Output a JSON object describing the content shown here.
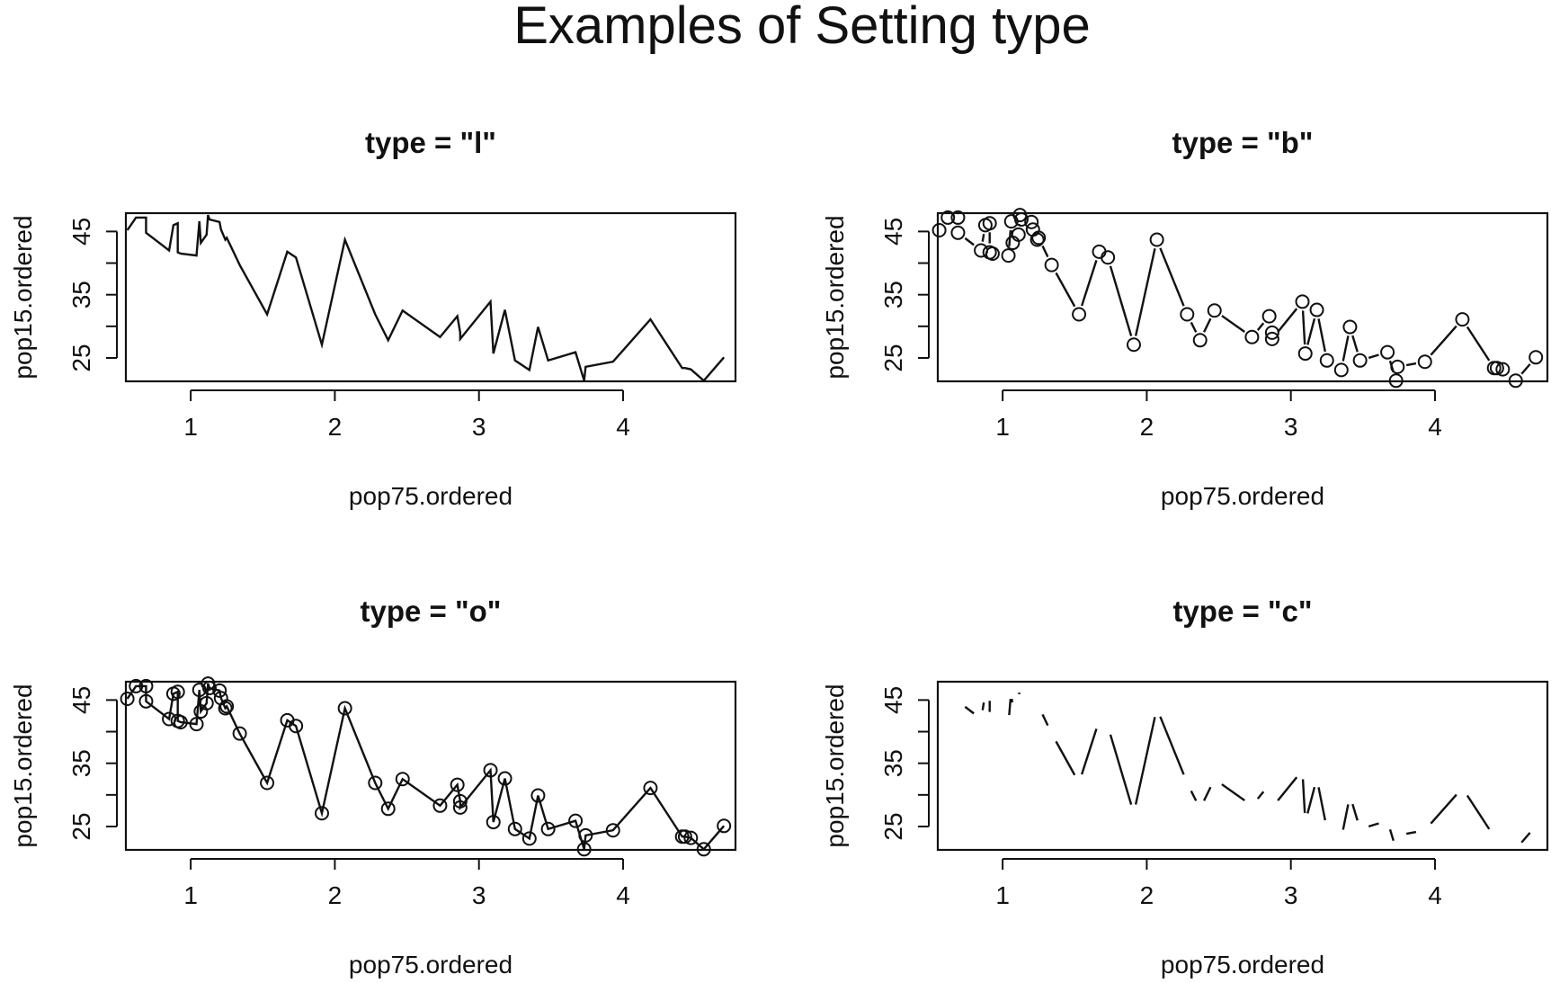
{
  "title": "Examples of Setting type",
  "chart_data": [
    {
      "type": "line",
      "plot_type": "l",
      "title": "type = \"l\"",
      "xlabel": "pop75.ordered",
      "ylabel": "pop15.ordered",
      "xlim": [
        0.55,
        4.78
      ],
      "ylim": [
        21.3,
        47.9
      ],
      "xticks": [
        1,
        2,
        3,
        4
      ],
      "yticks": [
        25,
        30,
        35,
        40,
        45
      ],
      "ytick_labels": [
        "25",
        "",
        "35",
        "",
        "45"
      ],
      "grid": false,
      "x": [
        0.56,
        0.62,
        0.69,
        0.69,
        0.85,
        0.88,
        0.91,
        0.91,
        0.93,
        1.04,
        1.06,
        1.07,
        1.11,
        1.12,
        1.13,
        1.2,
        1.21,
        1.24,
        1.25,
        1.34,
        1.53,
        1.67,
        1.73,
        1.91,
        2.07,
        2.28,
        2.37,
        2.47,
        2.73,
        2.85,
        2.87,
        2.87,
        3.08,
        3.1,
        3.18,
        3.25,
        3.35,
        3.41,
        3.48,
        3.67,
        3.73,
        3.74,
        3.93,
        4.19,
        4.41,
        4.43,
        4.47,
        4.56,
        4.7
      ],
      "y": [
        45.2,
        47.2,
        47.2,
        44.8,
        42.0,
        46.0,
        46.3,
        41.7,
        41.5,
        41.2,
        46.6,
        43.2,
        44.5,
        47.6,
        46.9,
        46.5,
        45.3,
        43.7,
        44.0,
        39.7,
        31.9,
        41.8,
        40.9,
        27.1,
        43.7,
        31.9,
        27.8,
        32.5,
        28.3,
        31.6,
        29.0,
        28.0,
        33.9,
        25.7,
        32.6,
        24.6,
        23.1,
        29.9,
        24.6,
        25.9,
        21.4,
        23.6,
        24.4,
        31.1,
        23.4,
        23.4,
        23.2,
        21.4,
        25.1
      ]
    },
    {
      "type": "line",
      "plot_type": "b",
      "title": "type = \"b\"",
      "xlabel": "pop75.ordered",
      "ylabel": "pop15.ordered",
      "xlim": [
        0.55,
        4.78
      ],
      "ylim": [
        21.3,
        47.9
      ],
      "xticks": [
        1,
        2,
        3,
        4
      ],
      "yticks": [
        25,
        30,
        35,
        40,
        45
      ],
      "ytick_labels": [
        "25",
        "",
        "35",
        "",
        "45"
      ],
      "grid": false,
      "x": [
        0.56,
        0.62,
        0.69,
        0.69,
        0.85,
        0.88,
        0.91,
        0.91,
        0.93,
        1.04,
        1.06,
        1.07,
        1.11,
        1.12,
        1.13,
        1.2,
        1.21,
        1.24,
        1.25,
        1.34,
        1.53,
        1.67,
        1.73,
        1.91,
        2.07,
        2.28,
        2.37,
        2.47,
        2.73,
        2.85,
        2.87,
        2.87,
        3.08,
        3.1,
        3.18,
        3.25,
        3.35,
        3.41,
        3.48,
        3.67,
        3.73,
        3.74,
        3.93,
        4.19,
        4.41,
        4.43,
        4.47,
        4.56,
        4.7
      ],
      "y": [
        45.2,
        47.2,
        47.2,
        44.8,
        42.0,
        46.0,
        46.3,
        41.7,
        41.5,
        41.2,
        46.6,
        43.2,
        44.5,
        47.6,
        46.9,
        46.5,
        45.3,
        43.7,
        44.0,
        39.7,
        31.9,
        41.8,
        40.9,
        27.1,
        43.7,
        31.9,
        27.8,
        32.5,
        28.3,
        31.6,
        29.0,
        28.0,
        33.9,
        25.7,
        32.6,
        24.6,
        23.1,
        29.9,
        24.6,
        25.9,
        21.4,
        23.6,
        24.4,
        31.1,
        23.4,
        23.4,
        23.2,
        21.4,
        25.1
      ]
    },
    {
      "type": "line",
      "plot_type": "o",
      "title": "type = \"o\"",
      "xlabel": "pop75.ordered",
      "ylabel": "pop15.ordered",
      "xlim": [
        0.55,
        4.78
      ],
      "ylim": [
        21.3,
        47.9
      ],
      "xticks": [
        1,
        2,
        3,
        4
      ],
      "yticks": [
        25,
        30,
        35,
        40,
        45
      ],
      "ytick_labels": [
        "25",
        "",
        "35",
        "",
        "45"
      ],
      "grid": false,
      "x": [
        0.56,
        0.62,
        0.69,
        0.69,
        0.85,
        0.88,
        0.91,
        0.91,
        0.93,
        1.04,
        1.06,
        1.07,
        1.11,
        1.12,
        1.13,
        1.2,
        1.21,
        1.24,
        1.25,
        1.34,
        1.53,
        1.67,
        1.73,
        1.91,
        2.07,
        2.28,
        2.37,
        2.47,
        2.73,
        2.85,
        2.87,
        2.87,
        3.08,
        3.1,
        3.18,
        3.25,
        3.35,
        3.41,
        3.48,
        3.67,
        3.73,
        3.74,
        3.93,
        4.19,
        4.41,
        4.43,
        4.47,
        4.56,
        4.7
      ],
      "y": [
        45.2,
        47.2,
        47.2,
        44.8,
        42.0,
        46.0,
        46.3,
        41.7,
        41.5,
        41.2,
        46.6,
        43.2,
        44.5,
        47.6,
        46.9,
        46.5,
        45.3,
        43.7,
        44.0,
        39.7,
        31.9,
        41.8,
        40.9,
        27.1,
        43.7,
        31.9,
        27.8,
        32.5,
        28.3,
        31.6,
        29.0,
        28.0,
        33.9,
        25.7,
        32.6,
        24.6,
        23.1,
        29.9,
        24.6,
        25.9,
        21.4,
        23.6,
        24.4,
        31.1,
        23.4,
        23.4,
        23.2,
        21.4,
        25.1
      ]
    },
    {
      "type": "line",
      "plot_type": "c",
      "title": "type = \"c\"",
      "xlabel": "pop75.ordered",
      "ylabel": "pop15.ordered",
      "xlim": [
        0.55,
        4.78
      ],
      "ylim": [
        21.3,
        47.9
      ],
      "xticks": [
        1,
        2,
        3,
        4
      ],
      "yticks": [
        25,
        30,
        35,
        40,
        45
      ],
      "ytick_labels": [
        "25",
        "",
        "35",
        "",
        "45"
      ],
      "grid": false,
      "x": [
        0.56,
        0.62,
        0.69,
        0.69,
        0.85,
        0.88,
        0.91,
        0.91,
        0.93,
        1.04,
        1.06,
        1.07,
        1.11,
        1.12,
        1.13,
        1.2,
        1.21,
        1.24,
        1.25,
        1.34,
        1.53,
        1.67,
        1.73,
        1.91,
        2.07,
        2.28,
        2.37,
        2.47,
        2.73,
        2.85,
        2.87,
        2.87,
        3.08,
        3.1,
        3.18,
        3.25,
        3.35,
        3.41,
        3.48,
        3.67,
        3.73,
        3.74,
        3.93,
        4.19,
        4.41,
        4.43,
        4.47,
        4.56,
        4.7
      ],
      "y": [
        45.2,
        47.2,
        47.2,
        44.8,
        42.0,
        46.0,
        46.3,
        41.7,
        41.5,
        41.2,
        46.6,
        43.2,
        44.5,
        47.6,
        46.9,
        46.5,
        45.3,
        43.7,
        44.0,
        39.7,
        31.9,
        41.8,
        40.9,
        27.1,
        43.7,
        31.9,
        27.8,
        32.5,
        28.3,
        31.6,
        29.0,
        28.0,
        33.9,
        25.7,
        32.6,
        24.6,
        23.1,
        29.9,
        24.6,
        25.9,
        21.4,
        23.6,
        24.4,
        31.1,
        23.4,
        23.4,
        23.2,
        21.4,
        25.1
      ]
    }
  ]
}
